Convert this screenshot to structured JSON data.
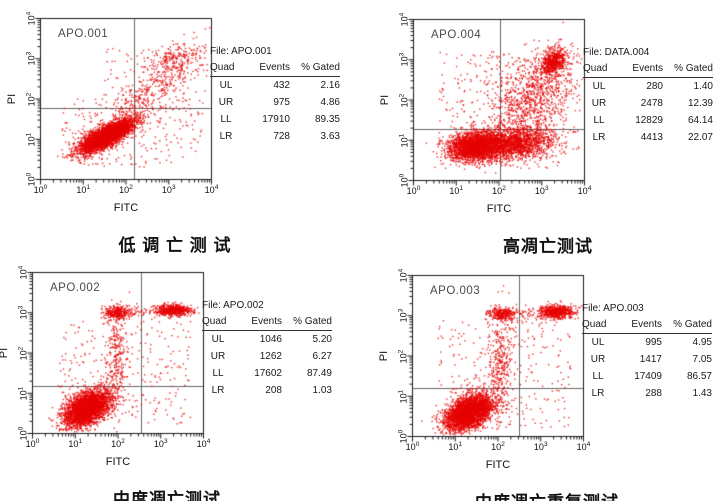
{
  "page": {
    "background": "#ffffff"
  },
  "axes": {
    "tick_base": "10",
    "exponents": [
      "0",
      "1",
      "2",
      "3",
      "4"
    ],
    "tick_labels": [
      "10^0",
      "10^1",
      "10^2",
      "10^3",
      "10^4"
    ],
    "xlabel": "FITC",
    "ylabel": "PI"
  },
  "colors": {
    "dot": "#e60000",
    "plot_border": "#1a1a1a",
    "gate_line": "#666666",
    "plot_label_text": "#4a4a4a",
    "text": "#111111"
  },
  "chart_data": [
    {
      "type": "scatter",
      "plot_label": "APO.001",
      "file_label": "File: APO.001",
      "title": "低 调 亡 测 试",
      "xlabel": "FITC",
      "ylabel": "PI",
      "x_scale": "log",
      "y_scale": "log",
      "xlim_log10": [
        0,
        4
      ],
      "ylim_log10": [
        0,
        4
      ],
      "quadrant_gate_log10": {
        "x": 2.18,
        "y": 1.78
      },
      "stats": {
        "columns": [
          "Quad",
          "Events",
          "% Gated"
        ],
        "rows": [
          [
            "UL",
            "432",
            "2.16"
          ],
          [
            "UR",
            "975",
            "4.86"
          ],
          [
            "LL",
            "17910",
            "89.35"
          ],
          [
            "LR",
            "728",
            "3.63"
          ]
        ]
      },
      "seed": 101,
      "clusters": [
        {
          "t": "g",
          "n": 4000,
          "cx": 1.55,
          "cy": 1.08,
          "sx": 0.3,
          "sy": 0.13,
          "sl": 0.5
        },
        {
          "t": "g",
          "n": 380,
          "cx": 2.55,
          "cy": 2.1,
          "sx": 0.55,
          "sy": 0.33,
          "sl": 0.7
        },
        {
          "t": "g",
          "n": 220,
          "cx": 3.15,
          "cy": 2.95,
          "sx": 0.35,
          "sy": 0.2,
          "sl": 0.2
        },
        {
          "t": "u",
          "n": 260,
          "x0": 0.5,
          "x1": 3.8,
          "y0": 0.3,
          "y1": 2.0
        },
        {
          "t": "u",
          "n": 80,
          "x0": 1.5,
          "x1": 3.9,
          "y0": 2.0,
          "y1": 3.3
        }
      ]
    },
    {
      "type": "scatter",
      "plot_label": "APO.004",
      "file_label": "File: DATA.004",
      "title": "高凋亡测试",
      "xlabel": "FITC",
      "ylabel": "PI",
      "x_scale": "log",
      "y_scale": "log",
      "xlim_log10": [
        0,
        4
      ],
      "ylim_log10": [
        0,
        4
      ],
      "quadrant_gate_log10": {
        "x": 2.03,
        "y": 1.27
      },
      "stats": {
        "columns": [
          "Quad",
          "Events",
          "% Gated"
        ],
        "rows": [
          [
            "UL",
            "280",
            "1.40"
          ],
          [
            "UR",
            "2478",
            "12.39"
          ],
          [
            "LL",
            "12829",
            "64.14"
          ],
          [
            "LR",
            "4413",
            "22.07"
          ]
        ]
      },
      "seed": 202,
      "clusters": [
        {
          "t": "g",
          "n": 2600,
          "cx": 1.45,
          "cy": 0.85,
          "sx": 0.32,
          "sy": 0.17,
          "sl": 0.08
        },
        {
          "t": "g",
          "n": 1700,
          "cx": 2.35,
          "cy": 0.92,
          "sx": 0.45,
          "sy": 0.2,
          "sl": 0.1
        },
        {
          "t": "g",
          "n": 650,
          "cx": 3.27,
          "cy": 2.92,
          "sx": 0.17,
          "sy": 0.17,
          "sl": 0.4
        },
        {
          "t": "g",
          "n": 900,
          "cx": 2.75,
          "cy": 2.0,
          "sx": 0.5,
          "sy": 0.55,
          "sl": 0.45
        },
        {
          "t": "u",
          "n": 350,
          "x0": 0.6,
          "x1": 3.9,
          "y0": 0.3,
          "y1": 3.2
        }
      ]
    },
    {
      "type": "scatter",
      "plot_label": "APO.002",
      "file_label": "File: APO.002",
      "title": "中度凋亡测试",
      "xlabel": "FITC",
      "ylabel": "PI",
      "x_scale": "log",
      "y_scale": "log",
      "xlim_log10": [
        0,
        4
      ],
      "ylim_log10": [
        0,
        4
      ],
      "quadrant_gate_log10": {
        "x": 2.53,
        "y": 1.19
      },
      "stats": {
        "columns": [
          "Quad",
          "Events",
          "% Gated"
        ],
        "rows": [
          [
            "UL",
            "1046",
            "5.20"
          ],
          [
            "UR",
            "1262",
            "6.27"
          ],
          [
            "LL",
            "17602",
            "87.49"
          ],
          [
            "LR",
            "208",
            "1.03"
          ]
        ]
      },
      "seed": 303,
      "clusters": [
        {
          "t": "g",
          "n": 3400,
          "cx": 1.28,
          "cy": 0.62,
          "sx": 0.26,
          "sy": 0.2,
          "sl": 0.4
        },
        {
          "t": "g",
          "n": 270,
          "cx": 2.0,
          "cy": 3.0,
          "sx": 0.13,
          "sy": 0.07,
          "sl": 0
        },
        {
          "t": "g",
          "n": 520,
          "cx": 3.3,
          "cy": 3.06,
          "sx": 0.2,
          "sy": 0.07,
          "sl": 0
        },
        {
          "t": "b",
          "n": 170,
          "x0": 1.6,
          "x1": 3.8,
          "cy": 3.03,
          "sy": 0.09
        },
        {
          "t": "g",
          "n": 300,
          "cx": 1.95,
          "cy": 1.9,
          "sx": 0.14,
          "sy": 0.6,
          "sl": 0
        },
        {
          "t": "u",
          "n": 280,
          "x0": 0.6,
          "x1": 3.7,
          "y0": 0.2,
          "y1": 2.8
        }
      ]
    },
    {
      "type": "scatter",
      "plot_label": "APO.003",
      "file_label": "File: APO.003",
      "title": "中度凋亡重复测试",
      "xlabel": "FITC",
      "ylabel": "PI",
      "x_scale": "log",
      "y_scale": "log",
      "xlim_log10": [
        0,
        4
      ],
      "ylim_log10": [
        0,
        4
      ],
      "quadrant_gate_log10": {
        "x": 2.49,
        "y": 1.21
      },
      "stats": {
        "columns": [
          "Quad",
          "Events",
          "% Gated"
        ],
        "rows": [
          [
            "UL",
            "995",
            "4.95"
          ],
          [
            "UR",
            "1417",
            "7.05"
          ],
          [
            "LL",
            "17409",
            "86.57"
          ],
          [
            "LR",
            "288",
            "1.43"
          ]
        ]
      },
      "seed": 404,
      "clusters": [
        {
          "t": "g",
          "n": 3400,
          "cx": 1.33,
          "cy": 0.6,
          "sx": 0.28,
          "sy": 0.2,
          "sl": 0.35
        },
        {
          "t": "g",
          "n": 250,
          "cx": 2.1,
          "cy": 3.05,
          "sx": 0.14,
          "sy": 0.08,
          "sl": 0
        },
        {
          "t": "g",
          "n": 560,
          "cx": 3.35,
          "cy": 3.1,
          "sx": 0.2,
          "sy": 0.08,
          "sl": 0
        },
        {
          "t": "b",
          "n": 160,
          "x0": 1.7,
          "x1": 3.85,
          "cy": 3.05,
          "sy": 0.09
        },
        {
          "t": "g",
          "n": 320,
          "cx": 2.05,
          "cy": 1.85,
          "sx": 0.16,
          "sy": 0.6,
          "sl": 0
        },
        {
          "t": "u",
          "n": 280,
          "x0": 0.6,
          "x1": 3.7,
          "y0": 0.2,
          "y1": 2.9
        }
      ]
    }
  ]
}
